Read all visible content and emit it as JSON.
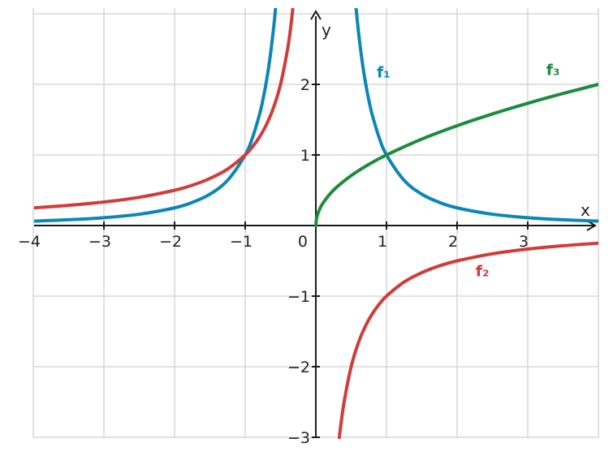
{
  "chart_data": {
    "type": "line",
    "title": "",
    "xlabel": "x",
    "ylabel": "y",
    "xlim": [
      -4,
      4
    ],
    "ylim": [
      -3,
      3
    ],
    "grid": true,
    "x_ticks": [
      {
        "value": -4,
        "label": "−4"
      },
      {
        "value": -3,
        "label": "−3"
      },
      {
        "value": -2,
        "label": "−2"
      },
      {
        "value": -1,
        "label": "−1"
      },
      {
        "value": 0,
        "label": "0"
      },
      {
        "value": 1,
        "label": "1"
      },
      {
        "value": 2,
        "label": "2"
      },
      {
        "value": 3,
        "label": "3"
      }
    ],
    "y_ticks": [
      {
        "value": 2,
        "label": "2"
      },
      {
        "value": 1,
        "label": "1"
      },
      {
        "value": -1,
        "label": "−1"
      },
      {
        "value": -2,
        "label": "−2"
      },
      {
        "value": -3,
        "label": "−3"
      }
    ],
    "series": [
      {
        "name": "f₁",
        "color": "#0a86b8",
        "x": [
          -4,
          -3.5,
          -3,
          -2.5,
          -2,
          -1.75,
          -1.5,
          -1.25,
          -1,
          -0.9,
          -0.8,
          -0.75,
          -0.7,
          -0.65,
          -0.6,
          -0.58,
          -0.55,
          0.51,
          0.55,
          0.6,
          0.65,
          0.7,
          0.75,
          0.8,
          0.9,
          1,
          1.25,
          1.5,
          1.75,
          2,
          2.5,
          3,
          3.5,
          4
        ],
        "y": [
          0.063,
          0.082,
          0.111,
          0.16,
          0.25,
          0.327,
          0.444,
          0.64,
          1,
          1.235,
          1.563,
          1.778,
          2.041,
          2.367,
          2.778,
          2.973,
          3.306,
          3.845,
          3.306,
          2.778,
          2.367,
          2.041,
          1.778,
          1.563,
          1.235,
          1,
          0.64,
          0.444,
          0.327,
          0.25,
          0.16,
          0.111,
          0.082,
          0.063
        ],
        "label_x": 1,
        "label_y": 2.1
      },
      {
        "name": "f₂",
        "color": "#d03c3a",
        "x": [
          -4,
          -3.5,
          -3,
          -2.5,
          -2,
          -1.75,
          -1.5,
          -1.25,
          -1,
          -0.9,
          -0.8,
          -0.7,
          -0.6,
          -0.5,
          -0.4,
          -0.35,
          -0.31,
          0.333,
          0.35,
          0.4,
          0.5,
          0.6,
          0.7,
          0.8,
          0.9,
          1,
          1.25,
          1.5,
          1.75,
          2,
          2.5,
          3,
          3.5,
          4
        ],
        "y": [
          0.25,
          0.286,
          0.333,
          0.4,
          0.5,
          0.571,
          0.667,
          0.8,
          1,
          1.111,
          1.25,
          1.429,
          1.667,
          2,
          2.5,
          2.857,
          3.226,
          -3.003,
          -2.857,
          -2.5,
          -2,
          -1.667,
          -1.429,
          -1.25,
          -1.111,
          -1,
          -0.8,
          -0.667,
          -0.571,
          -0.5,
          -0.4,
          -0.333,
          -0.286,
          -0.25
        ],
        "label_x": 2.4,
        "label_y": -0.72
      },
      {
        "name": "f₃",
        "color": "#1a8c3c",
        "x": [
          0,
          0.01,
          0.03,
          0.06,
          0.1,
          0.2,
          0.3,
          0.5,
          0.75,
          1,
          1.5,
          2,
          2.5,
          3,
          3.5,
          4
        ],
        "y": [
          0,
          0.1,
          0.173,
          0.245,
          0.316,
          0.447,
          0.548,
          0.707,
          0.866,
          1,
          1.225,
          1.414,
          1.581,
          1.732,
          1.871,
          2
        ],
        "label_x": 3.4,
        "label_y": 2.13
      }
    ]
  }
}
